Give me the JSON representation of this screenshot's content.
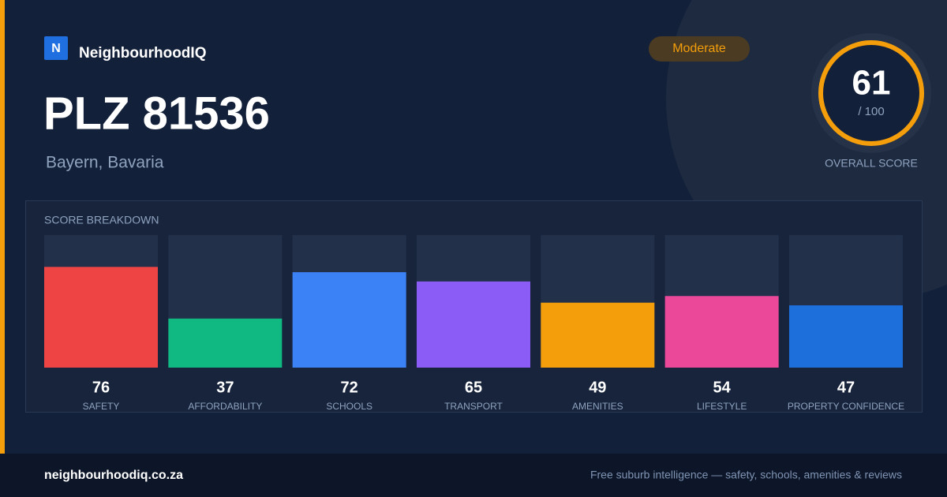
{
  "brand": {
    "logo": "N",
    "name": "NeighbourhoodIQ"
  },
  "title": "PLZ 81536",
  "subtitle": "Bayern, Bavaria",
  "badge": "Moderate",
  "score": {
    "value": 61,
    "max_label": "/ 100",
    "label": "OVERALL SCORE"
  },
  "chart_data": {
    "type": "bar",
    "title": "SCORE BREAKDOWN",
    "categories": [
      "SAFETY",
      "AFFORDABILITY",
      "SCHOOLS",
      "TRANSPORT",
      "AMENITIES",
      "LIFESTYLE",
      "PROPERTY CONFIDENCE"
    ],
    "values": [
      76,
      37,
      72,
      65,
      49,
      54,
      47
    ],
    "colors": [
      "#ef4444",
      "#10b981",
      "#3b82f6",
      "#8b5cf6",
      "#f59e0b",
      "#ec4899",
      "#1d6fdc"
    ],
    "ylim": [
      0,
      100
    ]
  },
  "footer": {
    "url": "neighbourhoodiq.co.za",
    "tagline": "Free suburb intelligence — safety, schools, amenities & reviews"
  }
}
